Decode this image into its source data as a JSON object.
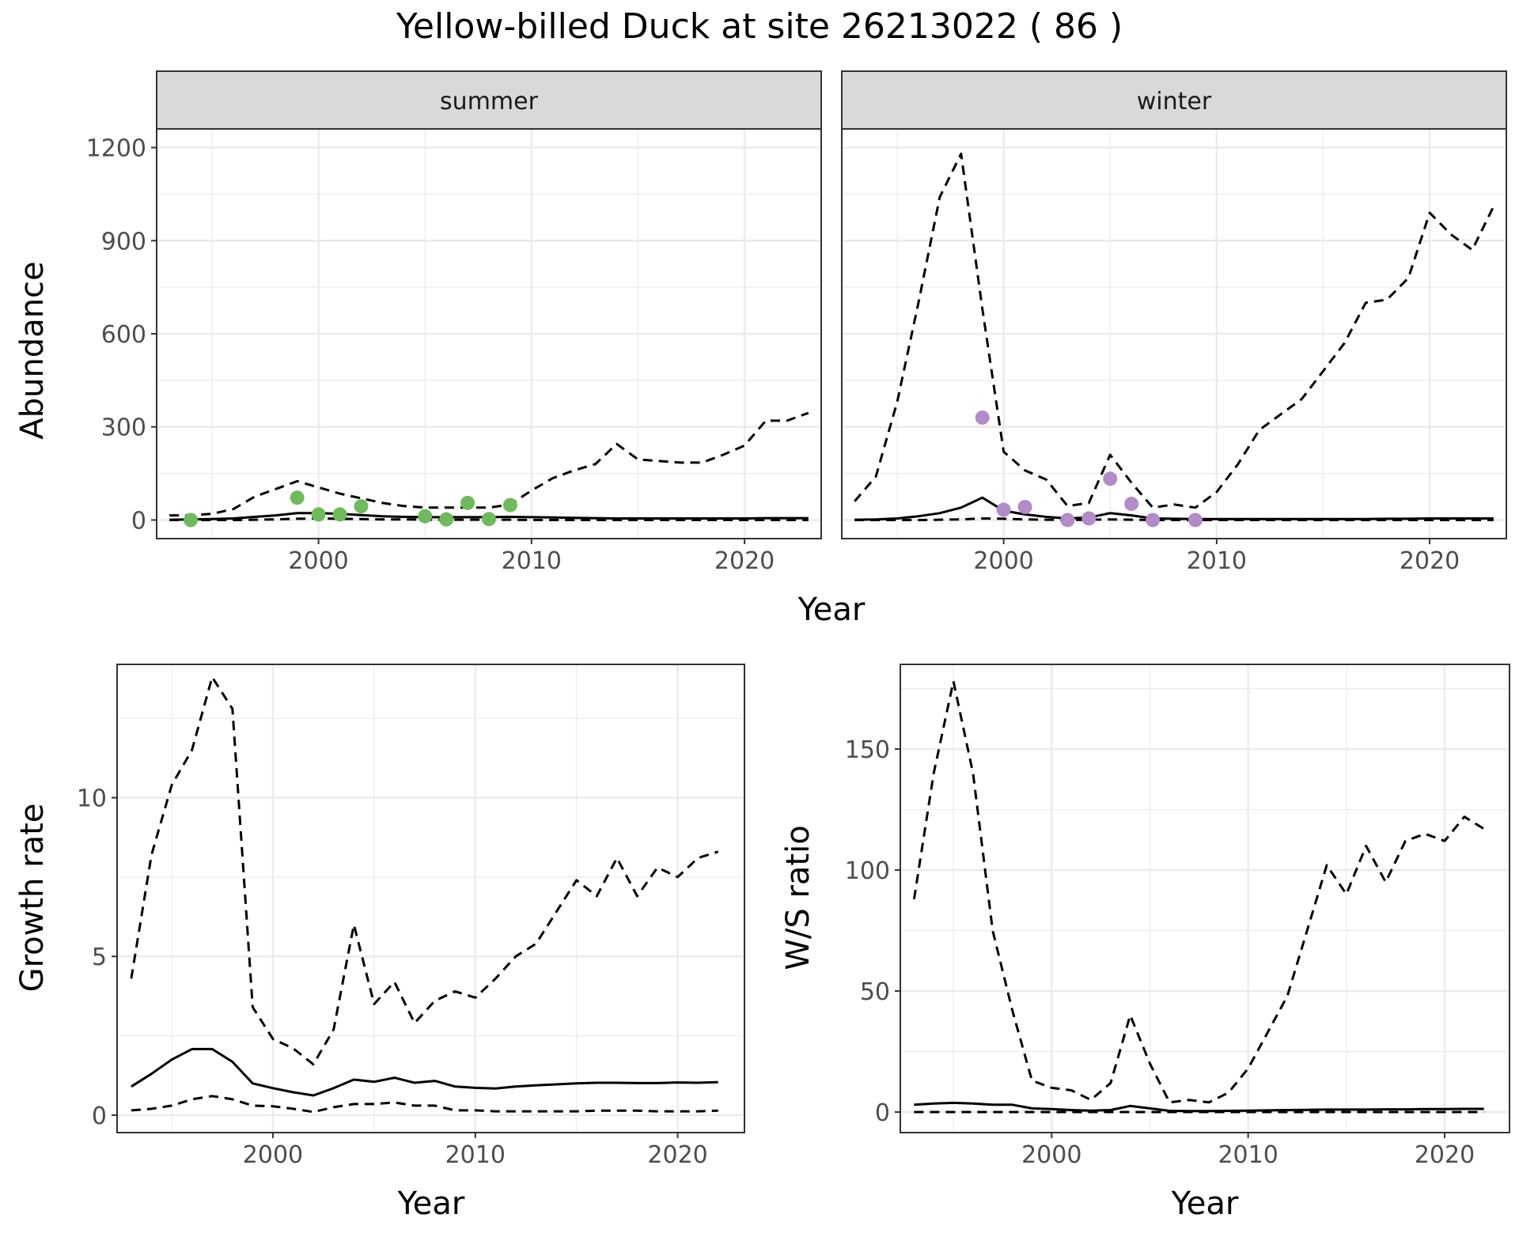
{
  "figure": {
    "title": "Yellow-billed Duck at site 26213022 ( 86 )"
  },
  "colors": {
    "summer_points": "#6dbb5a",
    "winter_points": "#b28bc8",
    "line": "#000000",
    "grid": "#ebebeb",
    "strip": "#d9d9d9"
  },
  "chart_data": [
    {
      "id": "abundance",
      "type": "line",
      "facets": [
        "summer",
        "winter"
      ],
      "xlabel": "Year",
      "ylabel": "Abundance",
      "xlim": [
        1992.4,
        2023.6
      ],
      "ylim": [
        -60,
        1260
      ],
      "xticks": [
        2000,
        2010,
        2020
      ],
      "yticks": [
        0,
        300,
        600,
        900,
        1200
      ],
      "panels": [
        {
          "facet": "summer",
          "series": [
            {
              "name": "upper",
              "style": "dashed",
              "x": [
                1993,
                1994,
                1995,
                1996,
                1997,
                1998,
                1999,
                2000,
                2001,
                2002,
                2003,
                2004,
                2005,
                2006,
                2007,
                2008,
                2009,
                2010,
                2011,
                2012,
                2013,
                2014,
                2015,
                2016,
                2017,
                2018,
                2019,
                2020,
                2021,
                2022,
                2023
              ],
              "y": [
                15,
                15,
                20,
                35,
                75,
                100,
                125,
                105,
                85,
                70,
                55,
                45,
                40,
                40,
                40,
                40,
                50,
                95,
                135,
                160,
                180,
                245,
                195,
                190,
                185,
                185,
                210,
                240,
                320,
                320,
                345
              ]
            },
            {
              "name": "mean",
              "style": "solid",
              "x": [
                1993,
                1994,
                1995,
                1996,
                1997,
                1998,
                1999,
                2000,
                2001,
                2002,
                2003,
                2004,
                2005,
                2006,
                2007,
                2008,
                2009,
                2010,
                2011,
                2012,
                2013,
                2014,
                2015,
                2016,
                2017,
                2018,
                2019,
                2020,
                2021,
                2022,
                2023
              ],
              "y": [
                1,
                2,
                3,
                5,
                10,
                15,
                22,
                22,
                20,
                16,
                12,
                10,
                9,
                9,
                9,
                9,
                10,
                9,
                8,
                7,
                6,
                5,
                5,
                5,
                5,
                5,
                5,
                5,
                6,
                6,
                6
              ]
            },
            {
              "name": "lower",
              "style": "dashed",
              "x": [
                1993,
                1994,
                1995,
                1996,
                1997,
                1998,
                1999,
                2000,
                2001,
                2002,
                2003,
                2004,
                2005,
                2006,
                2007,
                2008,
                2009,
                2010,
                2011,
                2012,
                2013,
                2014,
                2015,
                2016,
                2017,
                2018,
                2019,
                2020,
                2021,
                2022,
                2023
              ],
              "y": [
                0,
                0,
                0,
                0,
                1,
                2,
                4,
                5,
                4,
                3,
                2,
                2,
                1,
                1,
                1,
                1,
                1,
                0,
                0,
                0,
                0,
                0,
                0,
                0,
                0,
                0,
                0,
                0,
                0,
                0,
                0
              ]
            }
          ],
          "points": {
            "x": [
              1994,
              1999,
              2000,
              2001,
              2002,
              2005,
              2006,
              2007,
              2008,
              2009
            ],
            "y": [
              0,
              72,
              18,
              18,
              44,
              12,
              2,
              55,
              3,
              48
            ]
          }
        },
        {
          "facet": "winter",
          "series": [
            {
              "name": "upper",
              "style": "dashed",
              "x": [
                1993,
                1994,
                1995,
                1996,
                1997,
                1998,
                1999,
                2000,
                2001,
                2002,
                2003,
                2004,
                2005,
                2006,
                2007,
                2008,
                2009,
                2010,
                2011,
                2012,
                2013,
                2014,
                2015,
                2016,
                2017,
                2018,
                2019,
                2020,
                2021,
                2022,
                2023
              ],
              "y": [
                60,
                140,
                380,
                700,
                1040,
                1180,
                680,
                220,
                160,
                130,
                45,
                55,
                210,
                120,
                40,
                50,
                40,
                90,
                180,
                290,
                340,
                390,
                480,
                570,
                700,
                710,
                780,
                990,
                920,
                870,
                1010
              ]
            },
            {
              "name": "mean",
              "style": "solid",
              "x": [
                1993,
                1994,
                1995,
                1996,
                1997,
                1998,
                1999,
                2000,
                2001,
                2002,
                2003,
                2004,
                2005,
                2006,
                2007,
                2008,
                2009,
                2010,
                2011,
                2012,
                2013,
                2014,
                2015,
                2016,
                2017,
                2018,
                2019,
                2020,
                2021,
                2022,
                2023
              ],
              "y": [
                1,
                2,
                5,
                12,
                22,
                40,
                72,
                30,
                18,
                10,
                5,
                8,
                22,
                15,
                5,
                4,
                3,
                3,
                3,
                3,
                3,
                3,
                3,
                3,
                3,
                4,
                4,
                5,
                5,
                5,
                5
              ]
            },
            {
              "name": "lower",
              "style": "dashed",
              "x": [
                1993,
                1994,
                1995,
                1996,
                1997,
                1998,
                1999,
                2000,
                2001,
                2002,
                2003,
                2004,
                2005,
                2006,
                2007,
                2008,
                2009,
                2010,
                2011,
                2012,
                2013,
                2014,
                2015,
                2016,
                2017,
                2018,
                2019,
                2020,
                2021,
                2022,
                2023
              ],
              "y": [
                0,
                0,
                0,
                0,
                1,
                2,
                5,
                4,
                2,
                1,
                0,
                1,
                2,
                1,
                0,
                0,
                0,
                0,
                0,
                0,
                0,
                0,
                0,
                0,
                0,
                0,
                0,
                0,
                0,
                0,
                0
              ]
            }
          ],
          "points": {
            "x": [
              1999,
              2000,
              2001,
              2003,
              2004,
              2005,
              2006,
              2007,
              2009
            ],
            "y": [
              330,
              33,
              42,
              0,
              5,
              133,
              52,
              0,
              0
            ]
          }
        }
      ]
    },
    {
      "id": "growth",
      "type": "line",
      "xlabel": "Year",
      "ylabel": "Growth rate",
      "xlim": [
        1992.3,
        2023.3
      ],
      "ylim": [
        -0.55,
        14.2
      ],
      "xticks": [
        2000,
        2010,
        2020
      ],
      "yticks": [
        0,
        5,
        10
      ],
      "series": [
        {
          "name": "upper",
          "style": "dashed",
          "x": [
            1993,
            1994,
            1995,
            1996,
            1997,
            1998,
            1999,
            2000,
            2001,
            2002,
            2003,
            2004,
            2005,
            2006,
            2007,
            2008,
            2009,
            2010,
            2011,
            2012,
            2013,
            2014,
            2015,
            2016,
            2017,
            2018,
            2019,
            2020,
            2021,
            2022
          ],
          "y": [
            4.3,
            8.2,
            10.4,
            11.5,
            13.8,
            12.8,
            3.4,
            2.4,
            2.1,
            1.6,
            2.7,
            6.0,
            3.5,
            4.2,
            2.9,
            3.6,
            3.9,
            3.7,
            4.3,
            5.0,
            5.4,
            6.4,
            7.4,
            6.9,
            8.1,
            6.9,
            7.8,
            7.5,
            8.1,
            8.3
          ]
        },
        {
          "name": "mean",
          "style": "solid",
          "x": [
            1993,
            1994,
            1995,
            1996,
            1997,
            1998,
            1999,
            2000,
            2001,
            2002,
            2003,
            2004,
            2005,
            2006,
            2007,
            2008,
            2009,
            2010,
            2011,
            2012,
            2013,
            2014,
            2015,
            2016,
            2017,
            2018,
            2019,
            2020,
            2021,
            2022
          ],
          "y": [
            0.9,
            1.3,
            1.75,
            2.08,
            2.08,
            1.68,
            1.0,
            0.85,
            0.72,
            0.62,
            0.85,
            1.12,
            1.05,
            1.18,
            1.02,
            1.08,
            0.9,
            0.86,
            0.84,
            0.9,
            0.94,
            0.97,
            1.0,
            1.02,
            1.02,
            1.01,
            1.01,
            1.03,
            1.02,
            1.04
          ]
        },
        {
          "name": "lower",
          "style": "dashed",
          "x": [
            1993,
            1994,
            1995,
            1996,
            1997,
            1998,
            1999,
            2000,
            2001,
            2002,
            2003,
            2004,
            2005,
            2006,
            2007,
            2008,
            2009,
            2010,
            2011,
            2012,
            2013,
            2014,
            2015,
            2016,
            2017,
            2018,
            2019,
            2020,
            2021,
            2022
          ],
          "y": [
            0.15,
            0.2,
            0.3,
            0.5,
            0.6,
            0.5,
            0.3,
            0.28,
            0.2,
            0.1,
            0.25,
            0.35,
            0.35,
            0.4,
            0.3,
            0.3,
            0.15,
            0.15,
            0.12,
            0.12,
            0.12,
            0.12,
            0.12,
            0.14,
            0.14,
            0.14,
            0.12,
            0.12,
            0.12,
            0.14
          ]
        }
      ]
    },
    {
      "id": "ws_ratio",
      "type": "line",
      "xlabel": "Year",
      "ylabel": "W/S ratio",
      "xlim": [
        1992.3,
        2023.3
      ],
      "ylim": [
        -8.5,
        185
      ],
      "xticks": [
        2000,
        2010,
        2020
      ],
      "yticks": [
        0,
        50,
        100,
        150
      ],
      "series": [
        {
          "name": "upper",
          "style": "dashed",
          "x": [
            1993,
            1994,
            1995,
            1996,
            1997,
            1998,
            1999,
            2000,
            2001,
            2002,
            2003,
            2004,
            2005,
            2006,
            2007,
            2008,
            2009,
            2010,
            2011,
            2012,
            2013,
            2014,
            2015,
            2016,
            2017,
            2018,
            2019,
            2020,
            2021,
            2022
          ],
          "y": [
            88,
            140,
            178,
            140,
            75,
            42,
            13,
            10,
            9,
            5,
            12,
            40,
            20,
            4,
            5,
            4,
            8,
            18,
            33,
            48,
            75,
            102,
            90,
            110,
            95,
            112,
            115,
            112,
            122,
            117
          ]
        },
        {
          "name": "mean",
          "style": "solid",
          "x": [
            1993,
            1994,
            1995,
            1996,
            1997,
            1998,
            1999,
            2000,
            2001,
            2002,
            2003,
            2004,
            2005,
            2006,
            2007,
            2008,
            2009,
            2010,
            2011,
            2012,
            2013,
            2014,
            2015,
            2016,
            2017,
            2018,
            2019,
            2020,
            2021,
            2022
          ],
          "y": [
            3,
            3.5,
            3.8,
            3.5,
            3,
            3,
            1.5,
            1.2,
            0.8,
            0.6,
            0.8,
            2.5,
            1.5,
            0.5,
            0.4,
            0.4,
            0.5,
            0.6,
            0.7,
            0.8,
            0.9,
            1,
            1,
            1,
            1.1,
            1.1,
            1.2,
            1.2,
            1.3,
            1.3
          ]
        },
        {
          "name": "lower",
          "style": "dashed",
          "x": [
            1993,
            1994,
            1995,
            1996,
            1997,
            1998,
            1999,
            2000,
            2001,
            2002,
            2003,
            2004,
            2005,
            2006,
            2007,
            2008,
            2009,
            2010,
            2011,
            2012,
            2013,
            2014,
            2015,
            2016,
            2017,
            2018,
            2019,
            2020,
            2021,
            2022
          ],
          "y": [
            0,
            0,
            0,
            0,
            0,
            0,
            0,
            0,
            0,
            0,
            0,
            0,
            0,
            0,
            0,
            0,
            0,
            0,
            0,
            0,
            0,
            0,
            0,
            0,
            0,
            0,
            0,
            0,
            0,
            0
          ]
        }
      ]
    }
  ]
}
